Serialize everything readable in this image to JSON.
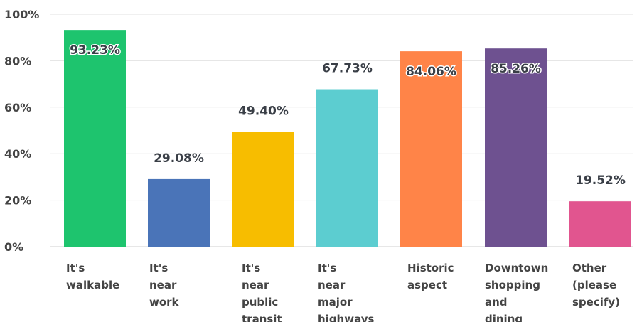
{
  "chart_data": {
    "type": "bar",
    "categories": [
      [
        "It's",
        "walkable"
      ],
      [
        "It's",
        "near",
        "work"
      ],
      [
        "It's",
        "near",
        "public",
        "transit"
      ],
      [
        "It's",
        "near",
        "major",
        "highways"
      ],
      [
        "Historic",
        "aspect"
      ],
      [
        "Downtown",
        "shopping",
        "and",
        "dining"
      ],
      [
        "Other",
        "(please",
        "specify)"
      ]
    ],
    "values": [
      93.23,
      29.08,
      49.4,
      67.73,
      84.06,
      85.26,
      19.52
    ],
    "value_labels": [
      "93.23%",
      "29.08%",
      "49.40%",
      "67.73%",
      "84.06%",
      "85.26%",
      "19.52%"
    ],
    "colors": [
      "#1ec46e",
      "#4a74b8",
      "#f7bd00",
      "#5ccdd0",
      "#ff8448",
      "#6e5190",
      "#e1558f"
    ],
    "ylim": [
      0,
      100
    ],
    "yticks": [
      0,
      20,
      40,
      60,
      80,
      100
    ],
    "ytick_labels": [
      "0%",
      "20%",
      "40%",
      "60%",
      "80%",
      "100%"
    ],
    "grid": true,
    "title": "",
    "xlabel": "",
    "ylabel": ""
  }
}
